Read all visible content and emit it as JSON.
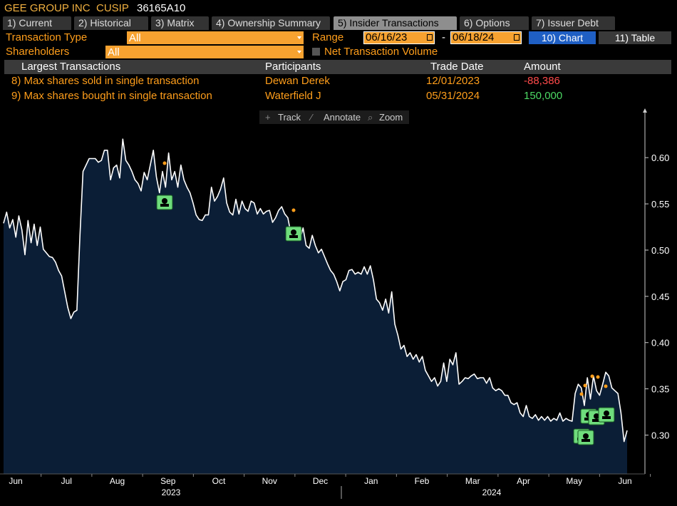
{
  "header": {
    "company": "GEE GROUP INC",
    "cusip_label": "CUSIP",
    "cusip": "36165A10"
  },
  "tabs": [
    "1) Current",
    "2) Historical",
    "3) Matrix",
    "4) Ownership Summary",
    "5) Insider Transactions",
    "6) Options",
    "7) Issuer Debt"
  ],
  "controls": {
    "transaction_type_label": "Transaction Type",
    "transaction_type": "All",
    "range_label": "Range",
    "range_start": "06/16/23",
    "range_sep": "-",
    "range_end": "06/18/24",
    "chart_button": "10) Chart",
    "table_button": "11) Table",
    "shareholders_label": "Shareholders",
    "shareholders": "All",
    "net_volume": "Net Transaction Volume"
  },
  "table": {
    "header": [
      "Largest Transactions",
      "Participants",
      "Trade Date",
      "Amount"
    ],
    "rows": [
      [
        "8) Max shares sold in single transaction",
        "Dewan Derek",
        "12/01/2023",
        "-88,386"
      ],
      [
        "9) Max shares bought in single transaction",
        "Waterfield J",
        "05/31/2024",
        "150,000"
      ]
    ]
  },
  "toolbar": [
    "Track",
    "Annotate",
    "Zoom"
  ],
  "chart_data": {
    "type": "line",
    "color": "#ffffff",
    "fill": "#0b1e36",
    "values": [
      0.529,
      0.541,
      0.524,
      0.533,
      0.514,
      0.537,
      0.522,
      0.495,
      0.532,
      0.508,
      0.528,
      0.505,
      0.525,
      0.501,
      0.497,
      0.493,
      0.492,
      0.487,
      0.478,
      0.472,
      0.455,
      0.438,
      0.426,
      0.433,
      0.435,
      0.516,
      0.585,
      0.592,
      0.599,
      0.599,
      0.599,
      0.595,
      0.597,
      0.608,
      0.608,
      0.576,
      0.589,
      0.592,
      0.578,
      0.62,
      0.597,
      0.592,
      0.585,
      0.576,
      0.572,
      0.564,
      0.584,
      0.576,
      0.592,
      0.608,
      0.579,
      0.562,
      0.585,
      0.568,
      0.605,
      0.576,
      0.585,
      0.568,
      0.592,
      0.576,
      0.568,
      0.562,
      0.551,
      0.538,
      0.533,
      0.532,
      0.538,
      0.538,
      0.568,
      0.553,
      0.558,
      0.566,
      0.578,
      0.551,
      0.541,
      0.538,
      0.555,
      0.539,
      0.553,
      0.545,
      0.542,
      0.553,
      0.551,
      0.539,
      0.545,
      0.539,
      0.542,
      0.543,
      0.53,
      0.535,
      0.543,
      0.547,
      0.539,
      0.535,
      0.518,
      0.525,
      0.516,
      0.512,
      0.524,
      0.505,
      0.502,
      0.516,
      0.505,
      0.497,
      0.501,
      0.493,
      0.485,
      0.478,
      0.474,
      0.466,
      0.456,
      0.466,
      0.468,
      0.478,
      0.479,
      0.474,
      0.476,
      0.474,
      0.482,
      0.474,
      0.483,
      0.468,
      0.447,
      0.443,
      0.435,
      0.447,
      0.432,
      0.455,
      0.42,
      0.408,
      0.393,
      0.397,
      0.385,
      0.389,
      0.382,
      0.387,
      0.379,
      0.385,
      0.37,
      0.364,
      0.358,
      0.362,
      0.353,
      0.358,
      0.378,
      0.358,
      0.382,
      0.376,
      0.389,
      0.355,
      0.358,
      0.362,
      0.361,
      0.364,
      0.366,
      0.361,
      0.362,
      0.362,
      0.356,
      0.362,
      0.351,
      0.348,
      0.35,
      0.348,
      0.343,
      0.343,
      0.335,
      0.333,
      0.335,
      0.324,
      0.32,
      0.332,
      0.32,
      0.318,
      0.322,
      0.316,
      0.32,
      0.316,
      0.32,
      0.315,
      0.318,
      0.316,
      0.324,
      0.315,
      0.318,
      0.316,
      0.315,
      0.345,
      0.355,
      0.351,
      0.332,
      0.362,
      0.339,
      0.364,
      0.348,
      0.343,
      0.355,
      0.368,
      0.364,
      0.351,
      0.348,
      0.345,
      0.324,
      0.293,
      0.305
    ],
    "ylim": [
      0.258,
      0.651
    ],
    "yticks": [
      {
        "value": 0.3,
        "label": "0.30"
      },
      0.35,
      {
        "value": 0.4,
        "label": "0.40"
      },
      0.45,
      {
        "value": 0.5,
        "label": "0.50"
      },
      0.55,
      {
        "value": 0.6,
        "label": "0.60"
      }
    ],
    "x_labels": [
      "Jun",
      "Jul",
      "Aug",
      "Sep",
      "Oct",
      "Nov",
      "Dec",
      "Jan",
      "Feb",
      "Mar",
      "Apr",
      "May",
      "Jun"
    ],
    "year_labels": [
      "2023",
      "2024"
    ]
  }
}
